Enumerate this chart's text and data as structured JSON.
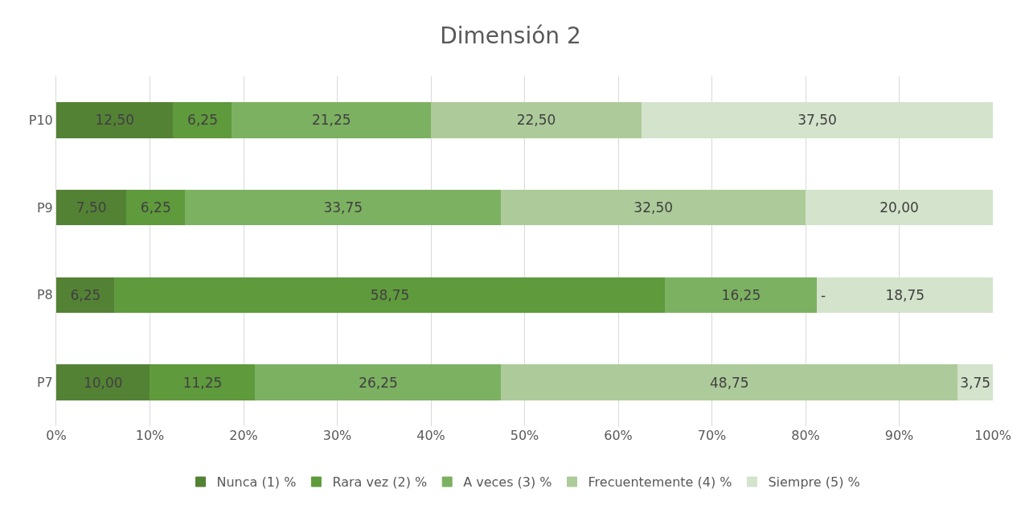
{
  "chart_data": {
    "type": "bar",
    "title": "Dimensión 2",
    "orientation": "horizontal",
    "stacked": true,
    "categories": [
      "P10",
      "P9",
      "P8",
      "P7"
    ],
    "series": [
      {
        "name": "Nunca (1) %",
        "color": "#548235",
        "values": [
          12.5,
          7.5,
          6.25,
          10.0
        ],
        "value_labels": [
          "12,50",
          "7,50",
          "6,25",
          "10,00"
        ]
      },
      {
        "name": "Rara vez (2) %",
        "color": "#5f9a3c",
        "values": [
          6.25,
          6.25,
          58.75,
          11.25
        ],
        "value_labels": [
          "6,25",
          "6,25",
          "58,75",
          "11,25"
        ]
      },
      {
        "name": "A veces (3) %",
        "color": "#7db162",
        "values": [
          21.25,
          33.75,
          16.25,
          26.25
        ],
        "value_labels": [
          "21,25",
          "33,75",
          "16,25",
          "26,25"
        ]
      },
      {
        "name": "Frecuentemente (4) %",
        "color": "#adcb9a",
        "values": [
          22.5,
          32.5,
          0,
          48.75
        ],
        "value_labels": [
          "22,50",
          "32,50",
          "-",
          "48,75"
        ]
      },
      {
        "name": "Siempre (5) %",
        "color": "#d4e3cb",
        "values": [
          37.5,
          20.0,
          18.75,
          3.75
        ],
        "value_labels": [
          "37,50",
          "20,00",
          "18,75",
          "3,75"
        ]
      }
    ],
    "xlim": [
      0,
      100
    ],
    "xticks": [
      {
        "value": 0,
        "label": "0%"
      },
      {
        "value": 10,
        "label": "10%"
      },
      {
        "value": 20,
        "label": "20%"
      },
      {
        "value": 30,
        "label": "30%"
      },
      {
        "value": 40,
        "label": "40%"
      },
      {
        "value": 50,
        "label": "50%"
      },
      {
        "value": 60,
        "label": "60%"
      },
      {
        "value": 70,
        "label": "70%"
      },
      {
        "value": 80,
        "label": "80%"
      },
      {
        "value": 90,
        "label": "90%"
      },
      {
        "value": 100,
        "label": "100%"
      }
    ],
    "grid": "x",
    "legend": "bottom"
  }
}
